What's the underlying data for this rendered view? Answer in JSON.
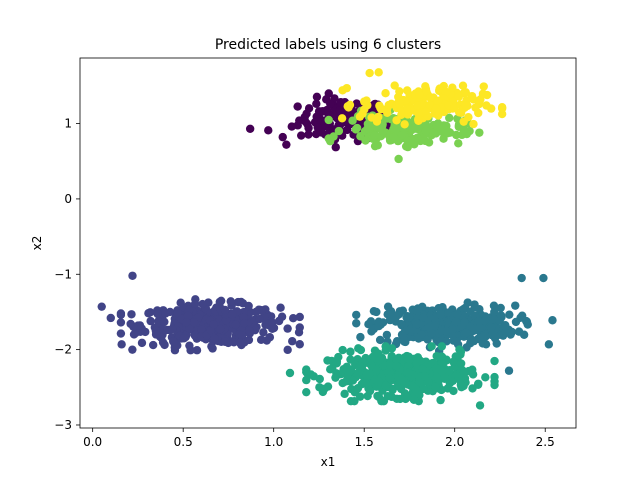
{
  "chart_data": {
    "type": "scatter",
    "title": "Predicted labels using 6 clusters",
    "xlabel": "x1",
    "ylabel": "x2",
    "xlim": [
      -0.07,
      2.67
    ],
    "ylim": [
      -3.04,
      1.87
    ],
    "xticks": [
      0.0,
      0.5,
      1.0,
      1.5,
      2.0,
      2.5
    ],
    "xtick_labels": [
      "0.0",
      "0.5",
      "1.0",
      "1.5",
      "2.0",
      "2.5"
    ],
    "yticks": [
      1,
      0,
      -1,
      -2,
      -3
    ],
    "ytick_labels": [
      "1",
      "0",
      "−1",
      "−2",
      "−3"
    ],
    "grid": false,
    "legend": false,
    "clusters": [
      {
        "label": 0,
        "color": "#440154",
        "center": [
          1.38,
          1.05
        ],
        "spread": [
          0.12,
          0.14
        ],
        "count": 120
      },
      {
        "label": 1,
        "color": "#414487",
        "center": [
          0.65,
          -1.67
        ],
        "spread": [
          0.19,
          0.13
        ],
        "count": 420
      },
      {
        "label": 2,
        "color": "#2a788e",
        "center": [
          1.95,
          -1.68
        ],
        "spread": [
          0.19,
          0.13
        ],
        "count": 360
      },
      {
        "label": 3,
        "color": "#22a884",
        "center": [
          1.7,
          -2.32
        ],
        "spread": [
          0.2,
          0.14
        ],
        "count": 420
      },
      {
        "label": 4,
        "color": "#7ad151",
        "center": [
          1.72,
          0.92
        ],
        "spread": [
          0.16,
          0.1
        ],
        "count": 160
      },
      {
        "label": 5,
        "color": "#fde725",
        "center": [
          1.82,
          1.25
        ],
        "spread": [
          0.17,
          0.12
        ],
        "count": 160
      }
    ],
    "outliers": [
      {
        "label": 0,
        "x": 0.87,
        "y": 0.93
      },
      {
        "label": 0,
        "x": 0.97,
        "y": 0.91
      },
      {
        "label": 0,
        "x": 1.07,
        "y": 0.72
      },
      {
        "label": 0,
        "x": 1.05,
        "y": 0.82
      },
      {
        "label": 0,
        "x": 1.1,
        "y": 0.96
      },
      {
        "label": 1,
        "x": 0.05,
        "y": -1.43
      },
      {
        "label": 1,
        "x": 0.1,
        "y": -1.58
      },
      {
        "label": 1,
        "x": 0.16,
        "y": -1.93
      },
      {
        "label": 1,
        "x": 0.22,
        "y": -1.02
      },
      {
        "label": 1,
        "x": 1.03,
        "y": -1.62
      },
      {
        "label": 1,
        "x": 1.14,
        "y": -1.77
      },
      {
        "label": 2,
        "x": 2.37,
        "y": -1.05
      },
      {
        "label": 2,
        "x": 2.49,
        "y": -1.05
      },
      {
        "label": 2,
        "x": 2.54,
        "y": -1.61
      },
      {
        "label": 2,
        "x": 2.52,
        "y": -1.93
      },
      {
        "label": 2,
        "x": 2.3,
        "y": -2.28
      },
      {
        "label": 3,
        "x": 1.09,
        "y": -2.31
      },
      {
        "label": 3,
        "x": 1.28,
        "y": -2.52
      },
      {
        "label": 3,
        "x": 2.14,
        "y": -2.74
      },
      {
        "label": 4,
        "x": 1.56,
        "y": 0.7
      },
      {
        "label": 4,
        "x": 1.69,
        "y": 0.53
      },
      {
        "label": 4,
        "x": 2.04,
        "y": 0.85
      },
      {
        "label": 5,
        "x": 1.53,
        "y": 1.67
      },
      {
        "label": 5,
        "x": 1.58,
        "y": 1.68
      },
      {
        "label": 5,
        "x": 2.13,
        "y": 1.14
      }
    ]
  }
}
